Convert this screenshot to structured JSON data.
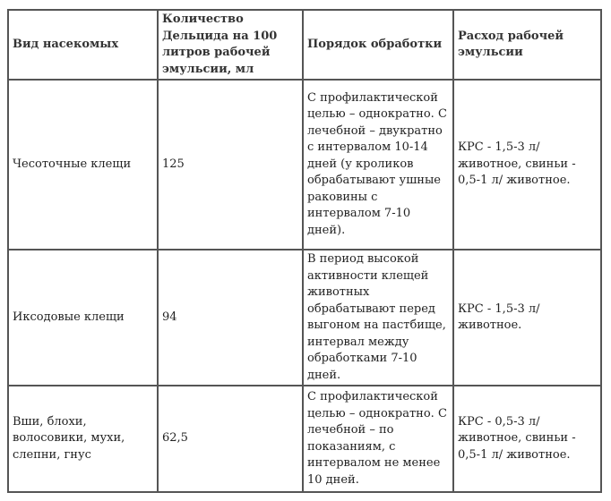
{
  "headers": [
    "Вид насекомых",
    "Количество Дельцида на 100 литров рабочей эмульсии, мл",
    "Порядок обработки",
    "Расход рабочей эмульсии"
  ],
  "rows": [
    {
      "insect": "Чесоточные клещи",
      "amount": "125",
      "order": "С профилактической целью – однократно. С лечебной – двукратно с интервалом 10-14 дней (у кроликов обрабатывают ушные раковины с интервалом 7-10 дней).",
      "consumption": "КРС - 1,5-3 л/ животное, свиньи - 0,5-1 л/ животное."
    },
    {
      "insect": "Иксодовые клещи",
      "amount": "94",
      "order": "В период высокой активности клещей животных обрабатывают перед выгоном на пастбище, интервал между обработками 7-10 дней.",
      "consumption": "КРС - 1,5-3 л/ животное."
    },
    {
      "insect": "Вши, блохи, волосовики, мухи, слепни, гнус",
      "amount": "62,5",
      "order": "С профилактической целью – однократно. С лечебной – по показаниям, с интервалом не менее 10 дней.",
      "consumption": "КРС - 0,5-3 л/ животное, свиньи - 0,5-1 л/ животное."
    }
  ]
}
